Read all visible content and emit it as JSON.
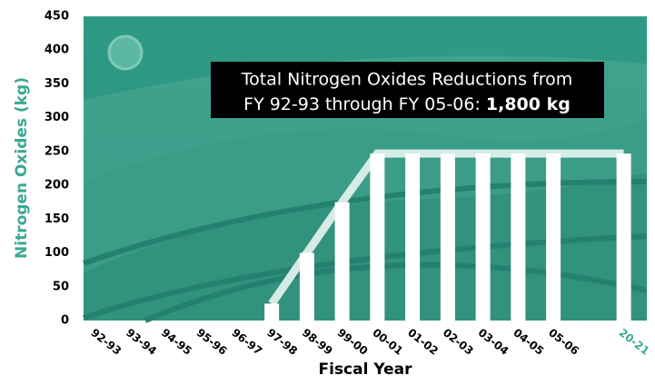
{
  "chart_data": {
    "type": "bar",
    "annotation": {
      "line1": "Total Nitrogen Oxides Reductions from",
      "line2": "FY 92-93 through FY 05-06:",
      "total": "1,800 kg"
    },
    "x_label": "Fiscal Year",
    "y_label": "Nitrogen Oxides (kg)",
    "categories": [
      "92-93",
      "93-94",
      "94-95",
      "95-96",
      "96-97",
      "97-98",
      "98-99",
      "99-00",
      "00-01",
      "01-02",
      "02-03",
      "03-04",
      "04-05",
      "05-06",
      null,
      "20-21"
    ],
    "values": [
      0,
      0,
      0,
      0,
      0,
      25,
      100,
      175,
      247,
      247,
      247,
      247,
      247,
      247,
      null,
      247
    ],
    "color": "#ffffff",
    "highlight_color": "#3aa893",
    "ylim": [
      0,
      450
    ],
    "yticks": [
      0,
      50,
      100,
      150,
      200,
      250,
      300,
      350,
      400,
      450
    ]
  }
}
